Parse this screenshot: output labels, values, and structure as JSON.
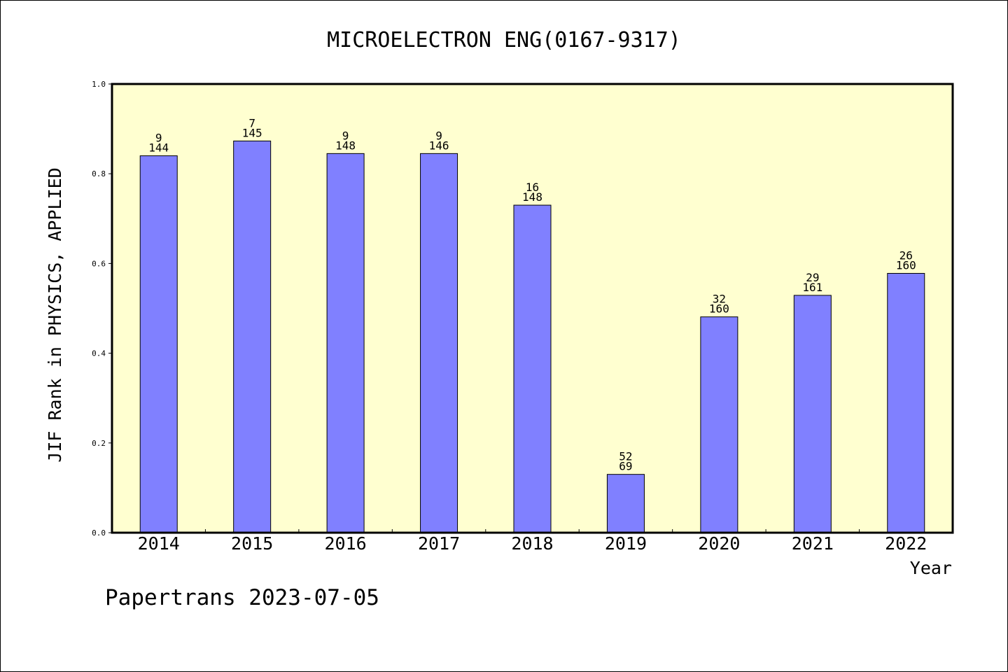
{
  "chart_data": {
    "type": "bar",
    "title": "MICROELECTRON ENG(0167-9317)",
    "xlabel": "Year",
    "ylabel": "JIF Rank in PHYSICS, APPLIED",
    "categories": [
      "2014",
      "2015",
      "2016",
      "2017",
      "2018",
      "2019",
      "2020",
      "2021",
      "2022"
    ],
    "series": [
      {
        "values": [
          0.84,
          0.873,
          0.845,
          0.845,
          0.73,
          0.13,
          0.481,
          0.529,
          0.578
        ]
      }
    ],
    "rank_labels": [
      "9",
      "7",
      "9",
      "9",
      "16",
      "52",
      "32",
      "29",
      "26"
    ],
    "total_labels": [
      "144",
      "145",
      "148",
      "146",
      "148",
      "69",
      "160",
      "161",
      "160"
    ],
    "ylim": [
      0,
      1.0
    ],
    "yticks": [
      "0.0",
      "0.2",
      "0.4",
      "0.6",
      "0.8",
      "1.0"
    ],
    "grid": false,
    "colors": {
      "bar": "#8080ff",
      "plot_background": "#ffffd0",
      "axis": "#000000"
    }
  },
  "footer": "Papertrans 2023-07-05"
}
